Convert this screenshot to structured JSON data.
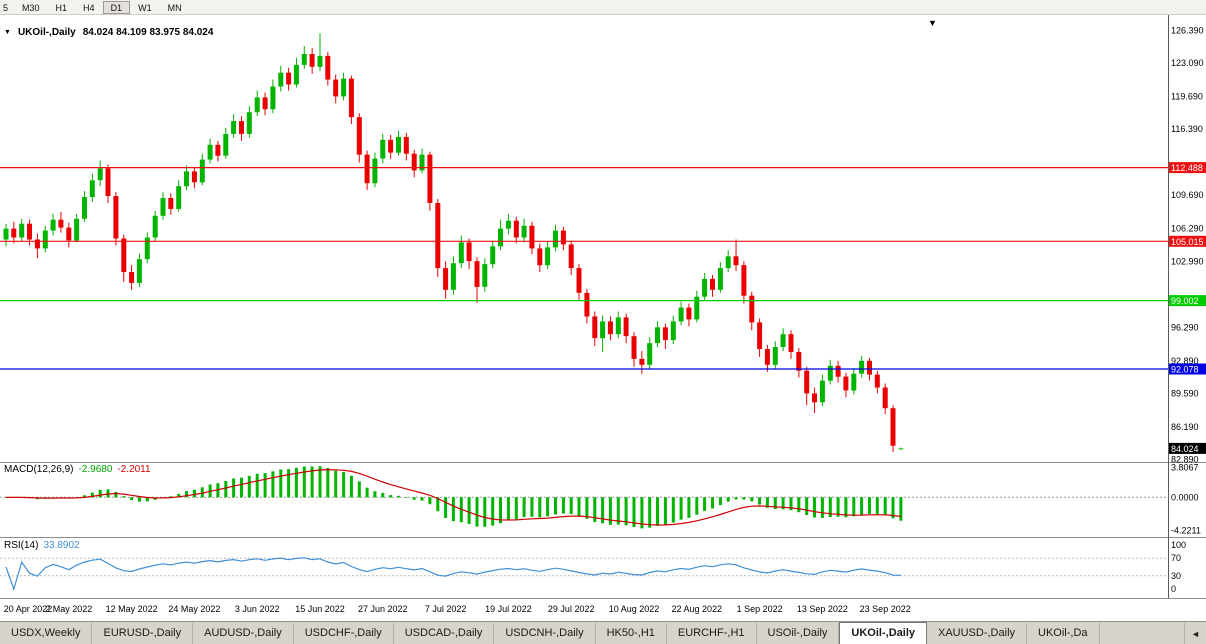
{
  "toolbar": {
    "timeframes": [
      "5",
      "M30",
      "H1",
      "H4",
      "D1",
      "W1",
      "MN"
    ],
    "active": "D1"
  },
  "icons": {
    "symbol_dropdown": "▼",
    "chart_shift_marker": "▼",
    "tab_scroll_left": "◄"
  },
  "chart": {
    "title": "UKOil-,Daily",
    "ohlc_text": "84.024 84.109 83.975 84.024"
  },
  "indicators": {
    "macd": {
      "name": "MACD(12,26,9)",
      "main_value": "-2.9680",
      "signal_value": "-2.2011"
    },
    "rsi": {
      "name": "RSI(14)",
      "value": "33.8902"
    }
  },
  "colors": {
    "candle_up": "#00b400",
    "candle_down": "#ea0000",
    "macd_hist": "#00b400",
    "macd_signal": "#cf0000",
    "rsi_line": "#3f8fd6"
  },
  "tabs": {
    "items": [
      "USDX,Weekly",
      "EURUSD-,Daily",
      "AUDUSD-,Daily",
      "USDCHF-,Daily",
      "USDCAD-,Daily",
      "USDCNH-,Daily",
      "HK50-,H1",
      "EURCHF-,H1",
      "USOil-,Daily",
      "UKOil-,Daily",
      "XAUUSD-,Daily",
      "UKOil-,Da"
    ],
    "active_index": 9
  },
  "chart_data": {
    "type": "candlestick",
    "symbol": "UKOil-",
    "timeframe": "Daily",
    "ylim": [
      82.75,
      127.95
    ],
    "current_price": {
      "price": 84.024,
      "label": "84.024",
      "bg": "#000000"
    },
    "price_axis_labels": [
      "126.390",
      "123.090",
      "119.690",
      "116.390",
      "109.690",
      "106.290",
      "102.990",
      "96.290",
      "92.890",
      "89.590",
      "86.190",
      "82.890"
    ],
    "hlines": [
      {
        "price": 112.488,
        "label": "112.488",
        "color": "#ee1111"
      },
      {
        "price": 105.015,
        "label": "105.015",
        "color": "#ee1111"
      },
      {
        "price": 99.002,
        "label": "99.002",
        "color": "#00cc00"
      },
      {
        "price": 92.078,
        "label": "92.078",
        "color": "#0000e6"
      }
    ],
    "x_ticks": [
      {
        "index": 0,
        "label": "20 Apr 2022"
      },
      {
        "index": 8,
        "label": "2 May 2022"
      },
      {
        "index": 16,
        "label": "12 May 2022"
      },
      {
        "index": 24,
        "label": "24 May 2022"
      },
      {
        "index": 32,
        "label": "3 Jun 2022"
      },
      {
        "index": 40,
        "label": "15 Jun 2022"
      },
      {
        "index": 48,
        "label": "27 Jun 2022"
      },
      {
        "index": 56,
        "label": "7 Jul 2022"
      },
      {
        "index": 64,
        "label": "19 Jul 2022"
      },
      {
        "index": 72,
        "label": "29 Jul 2022"
      },
      {
        "index": 80,
        "label": "10 Aug 2022"
      },
      {
        "index": 88,
        "label": "22 Aug 2022"
      },
      {
        "index": 96,
        "label": "1 Sep 2022"
      },
      {
        "index": 104,
        "label": "13 Sep 2022"
      },
      {
        "index": 112,
        "label": "23 Sep 2022"
      }
    ],
    "candles": [
      [
        105.2,
        106.8,
        104.5,
        106.3
      ],
      [
        106.3,
        107.0,
        104.8,
        105.4
      ],
      [
        105.4,
        107.3,
        105.0,
        106.8
      ],
      [
        106.8,
        107.2,
        104.6,
        105.2
      ],
      [
        105.2,
        105.8,
        103.3,
        104.3
      ],
      [
        104.3,
        106.6,
        103.9,
        106.1
      ],
      [
        106.1,
        107.8,
        105.6,
        107.2
      ],
      [
        107.2,
        108.0,
        105.9,
        106.4
      ],
      [
        106.4,
        106.9,
        104.4,
        105.1
      ],
      [
        105.1,
        107.8,
        104.9,
        107.3
      ],
      [
        107.3,
        110.1,
        107.0,
        109.5
      ],
      [
        109.5,
        111.9,
        109.0,
        111.2
      ],
      [
        111.2,
        113.2,
        110.6,
        112.4
      ],
      [
        112.4,
        112.8,
        108.9,
        109.6
      ],
      [
        109.6,
        110.0,
        104.6,
        105.3
      ],
      [
        105.3,
        105.7,
        100.9,
        101.9
      ],
      [
        101.9,
        102.6,
        100.1,
        100.8
      ],
      [
        100.8,
        103.8,
        100.4,
        103.2
      ],
      [
        103.2,
        105.9,
        102.8,
        105.4
      ],
      [
        105.4,
        108.1,
        105.0,
        107.6
      ],
      [
        107.6,
        110.0,
        107.2,
        109.4
      ],
      [
        109.4,
        109.9,
        107.7,
        108.3
      ],
      [
        108.3,
        111.2,
        108.0,
        110.6
      ],
      [
        110.6,
        112.7,
        110.2,
        112.1
      ],
      [
        112.1,
        112.5,
        110.4,
        111.0
      ],
      [
        111.0,
        113.9,
        110.7,
        113.3
      ],
      [
        113.3,
        115.4,
        112.9,
        114.8
      ],
      [
        114.8,
        115.2,
        113.1,
        113.7
      ],
      [
        113.7,
        116.5,
        113.4,
        115.9
      ],
      [
        115.9,
        117.9,
        115.5,
        117.2
      ],
      [
        117.2,
        117.7,
        115.2,
        115.9
      ],
      [
        115.9,
        118.7,
        115.5,
        118.1
      ],
      [
        118.1,
        120.3,
        117.7,
        119.6
      ],
      [
        119.6,
        120.1,
        117.8,
        118.4
      ],
      [
        118.4,
        121.4,
        118.0,
        120.7
      ],
      [
        120.7,
        122.8,
        120.2,
        122.1
      ],
      [
        122.1,
        122.6,
        120.3,
        120.9
      ],
      [
        120.9,
        123.6,
        120.6,
        122.9
      ],
      [
        122.9,
        124.8,
        122.5,
        124.0
      ],
      [
        124.0,
        124.6,
        122.0,
        122.7
      ],
      [
        122.7,
        126.1,
        122.3,
        123.8
      ],
      [
        123.8,
        124.2,
        120.8,
        121.4
      ],
      [
        121.4,
        121.9,
        119.0,
        119.7
      ],
      [
        119.7,
        122.1,
        119.3,
        121.5
      ],
      [
        121.5,
        121.8,
        116.9,
        117.6
      ],
      [
        117.6,
        118.0,
        113.0,
        113.8
      ],
      [
        113.8,
        114.2,
        110.2,
        110.9
      ],
      [
        110.9,
        114.0,
        110.5,
        113.4
      ],
      [
        113.4,
        115.9,
        112.9,
        115.3
      ],
      [
        115.3,
        115.8,
        113.4,
        114.0
      ],
      [
        114.0,
        116.2,
        113.7,
        115.6
      ],
      [
        115.6,
        116.0,
        113.2,
        113.9
      ],
      [
        113.9,
        114.3,
        111.5,
        112.2
      ],
      [
        112.2,
        114.4,
        111.9,
        113.8
      ],
      [
        113.8,
        114.1,
        108.1,
        108.9
      ],
      [
        108.9,
        109.3,
        101.4,
        102.3
      ],
      [
        102.3,
        103.0,
        99.2,
        100.1
      ],
      [
        100.1,
        103.5,
        99.6,
        102.8
      ],
      [
        102.8,
        105.6,
        102.3,
        104.9
      ],
      [
        104.9,
        105.3,
        102.2,
        103.0
      ],
      [
        103.0,
        103.4,
        98.8,
        100.4
      ],
      [
        100.4,
        103.3,
        99.9,
        102.7
      ],
      [
        102.7,
        105.1,
        102.3,
        104.5
      ],
      [
        104.5,
        107.2,
        104.1,
        106.3
      ],
      [
        106.3,
        107.8,
        105.7,
        107.1
      ],
      [
        107.1,
        107.5,
        104.8,
        105.4
      ],
      [
        105.4,
        107.3,
        104.9,
        106.6
      ],
      [
        106.6,
        107.0,
        103.7,
        104.3
      ],
      [
        104.3,
        104.8,
        101.9,
        102.6
      ],
      [
        102.6,
        105.0,
        102.2,
        104.4
      ],
      [
        104.4,
        106.7,
        104.0,
        106.1
      ],
      [
        106.1,
        106.5,
        104.1,
        104.7
      ],
      [
        104.7,
        105.1,
        101.6,
        102.3
      ],
      [
        102.3,
        102.7,
        99.1,
        99.8
      ],
      [
        99.8,
        100.2,
        96.7,
        97.4
      ],
      [
        97.4,
        97.9,
        94.4,
        95.2
      ],
      [
        95.2,
        97.5,
        93.8,
        96.9
      ],
      [
        96.9,
        97.4,
        95.0,
        95.6
      ],
      [
        95.6,
        97.9,
        95.2,
        97.3
      ],
      [
        97.3,
        97.7,
        94.7,
        95.4
      ],
      [
        95.4,
        95.8,
        92.3,
        93.1
      ],
      [
        93.1,
        93.9,
        91.6,
        92.5
      ],
      [
        92.5,
        95.3,
        92.1,
        94.7
      ],
      [
        94.7,
        96.9,
        94.3,
        96.3
      ],
      [
        96.3,
        96.7,
        94.1,
        95.0
      ],
      [
        95.0,
        97.5,
        94.6,
        96.9
      ],
      [
        96.9,
        98.9,
        96.5,
        98.3
      ],
      [
        98.3,
        98.7,
        96.4,
        97.1
      ],
      [
        97.1,
        100.0,
        96.8,
        99.4
      ],
      [
        99.4,
        101.8,
        99.0,
        101.2
      ],
      [
        101.2,
        101.6,
        99.4,
        100.1
      ],
      [
        100.1,
        102.9,
        99.8,
        102.3
      ],
      [
        102.3,
        104.1,
        101.9,
        103.5
      ],
      [
        103.5,
        105.2,
        102.0,
        102.6
      ],
      [
        102.6,
        103.0,
        98.7,
        99.5
      ],
      [
        99.5,
        99.9,
        96.0,
        96.8
      ],
      [
        96.8,
        97.2,
        93.3,
        94.1
      ],
      [
        94.1,
        94.5,
        91.8,
        92.5
      ],
      [
        92.5,
        94.9,
        92.1,
        94.3
      ],
      [
        94.3,
        96.2,
        93.9,
        95.6
      ],
      [
        95.6,
        96.0,
        93.1,
        93.8
      ],
      [
        93.8,
        94.2,
        91.2,
        91.9
      ],
      [
        91.9,
        92.3,
        88.4,
        89.6
      ],
      [
        89.6,
        90.2,
        87.6,
        88.7
      ],
      [
        88.7,
        91.5,
        88.3,
        90.9
      ],
      [
        90.9,
        93.0,
        90.5,
        92.4
      ],
      [
        92.4,
        92.9,
        90.7,
        91.3
      ],
      [
        91.3,
        91.7,
        89.2,
        89.9
      ],
      [
        89.9,
        92.2,
        89.5,
        91.6
      ],
      [
        91.6,
        93.4,
        91.2,
        92.9
      ],
      [
        92.9,
        93.2,
        90.9,
        91.5
      ],
      [
        91.5,
        91.9,
        89.6,
        90.2
      ],
      [
        90.2,
        90.6,
        87.5,
        88.1
      ],
      [
        88.1,
        88.4,
        83.65,
        84.3
      ],
      [
        84.024,
        84.109,
        83.975,
        84.024
      ]
    ],
    "macd": {
      "fast": 12,
      "slow": 26,
      "signal": 9,
      "ylim": [
        -4.9,
        4.35
      ],
      "axis_labels": [
        {
          "text": "3.8067",
          "value": 3.8067
        },
        {
          "text": "0.0000",
          "value": 0
        },
        {
          "text": "-4.2211",
          "value": -4.2211
        }
      ]
    },
    "rsi": {
      "period": 14,
      "levels": [
        30,
        70
      ],
      "axis_labels": [
        {
          "text": "100",
          "value": 100
        },
        {
          "text": "70",
          "value": 70
        },
        {
          "text": "30",
          "value": 30
        },
        {
          "text": "0",
          "value": 0
        }
      ]
    }
  }
}
